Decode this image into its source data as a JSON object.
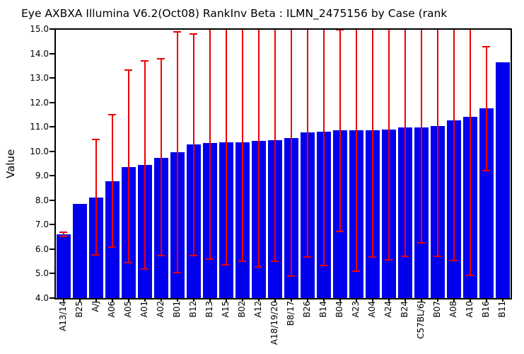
{
  "title": "Eye AXBXA Illumina V6.2(Oct08) RankInv Beta : ILMN_2475156 by Case (rank",
  "ylabel": "Value",
  "colors": {
    "bar": "#0000EE",
    "error": "#EE0000",
    "axis": "#000000",
    "background": "#FFFFFF"
  },
  "chart_data": {
    "type": "bar",
    "title": "Eye AXBXA Illumina V6.2(Oct08) RankInv Beta : ILMN_2475156 by Case (rank",
    "xlabel": "",
    "ylabel": "Value",
    "ylim": [
      4.0,
      15.0
    ],
    "ytick_step": 1.0,
    "grid": false,
    "legend": "none",
    "note": "blue bars with red error bars; several upper error whiskers are clipped at y=15.0 (no top cap drawn)",
    "categories": [
      "A13/14",
      "B25",
      "A/J",
      "A06",
      "A05",
      "A01",
      "A02",
      "B01",
      "B12",
      "B13",
      "A15",
      "B02",
      "A12",
      "A18/19/20",
      "B8/17",
      "B26",
      "B14",
      "B04",
      "A23",
      "A04",
      "A24",
      "B24",
      "C57BL/6J",
      "B07",
      "A08",
      "A10",
      "B16",
      "B11"
    ],
    "values": [
      6.61,
      7.85,
      8.12,
      8.79,
      9.35,
      9.44,
      9.72,
      9.96,
      10.27,
      10.33,
      10.38,
      10.38,
      10.42,
      10.46,
      10.53,
      10.77,
      10.79,
      10.85,
      10.85,
      10.86,
      10.9,
      10.97,
      10.97,
      11.04,
      11.27,
      11.4,
      11.77,
      13.65
    ],
    "rows": [
      {
        "label": "A13/14",
        "value": 6.61,
        "err_low": 6.53,
        "err_high": 6.68,
        "err_high_clipped": false
      },
      {
        "label": "B25",
        "value": 7.85,
        "err_low": null,
        "err_high": null,
        "err_high_clipped": false
      },
      {
        "label": "A/J",
        "value": 8.12,
        "err_low": 5.77,
        "err_high": 10.49,
        "err_high_clipped": false
      },
      {
        "label": "A06",
        "value": 8.79,
        "err_low": 6.08,
        "err_high": 11.51,
        "err_high_clipped": false
      },
      {
        "label": "A05",
        "value": 9.35,
        "err_low": 5.45,
        "err_high": 13.33,
        "err_high_clipped": false
      },
      {
        "label": "A01",
        "value": 9.44,
        "err_low": 5.2,
        "err_high": 13.7,
        "err_high_clipped": false
      },
      {
        "label": "A02",
        "value": 9.72,
        "err_low": 5.75,
        "err_high": 13.77,
        "err_high_clipped": false
      },
      {
        "label": "B01",
        "value": 9.96,
        "err_low": 5.04,
        "err_high": 14.88,
        "err_high_clipped": false
      },
      {
        "label": "B12",
        "value": 10.27,
        "err_low": 5.74,
        "err_high": 14.81,
        "err_high_clipped": false
      },
      {
        "label": "B13",
        "value": 10.33,
        "err_low": 5.59,
        "err_high": 15.0,
        "err_high_clipped": true
      },
      {
        "label": "A15",
        "value": 10.38,
        "err_low": 5.35,
        "err_high": 15.0,
        "err_high_clipped": true
      },
      {
        "label": "B02",
        "value": 10.38,
        "err_low": 5.5,
        "err_high": 15.0,
        "err_high_clipped": true
      },
      {
        "label": "A12",
        "value": 10.42,
        "err_low": 5.28,
        "err_high": 15.0,
        "err_high_clipped": true
      },
      {
        "label": "A18/19/20",
        "value": 10.46,
        "err_low": 5.5,
        "err_high": 15.0,
        "err_high_clipped": true
      },
      {
        "label": "B8/17",
        "value": 10.53,
        "err_low": 4.91,
        "err_high": 15.0,
        "err_high_clipped": true
      },
      {
        "label": "B26",
        "value": 10.77,
        "err_low": 5.67,
        "err_high": 15.0,
        "err_high_clipped": true
      },
      {
        "label": "B14",
        "value": 10.79,
        "err_low": 5.33,
        "err_high": 15.0,
        "err_high_clipped": true
      },
      {
        "label": "B04",
        "value": 10.85,
        "err_low": 6.72,
        "err_high": 14.96,
        "err_high_clipped": false
      },
      {
        "label": "A23",
        "value": 10.85,
        "err_low": 5.11,
        "err_high": 15.0,
        "err_high_clipped": true
      },
      {
        "label": "A04",
        "value": 10.86,
        "err_low": 5.69,
        "err_high": 15.0,
        "err_high_clipped": true
      },
      {
        "label": "A24",
        "value": 10.9,
        "err_low": 5.57,
        "err_high": 15.0,
        "err_high_clipped": true
      },
      {
        "label": "B24",
        "value": 10.97,
        "err_low": 5.72,
        "err_high": 15.0,
        "err_high_clipped": true
      },
      {
        "label": "C57BL/6J",
        "value": 10.97,
        "err_low": 6.25,
        "err_high": 15.0,
        "err_high_clipped": true
      },
      {
        "label": "B07",
        "value": 11.04,
        "err_low": 5.7,
        "err_high": 15.0,
        "err_high_clipped": true
      },
      {
        "label": "A08",
        "value": 11.27,
        "err_low": 5.54,
        "err_high": 15.0,
        "err_high_clipped": true
      },
      {
        "label": "A10",
        "value": 11.4,
        "err_low": 4.92,
        "err_high": 15.0,
        "err_high_clipped": true
      },
      {
        "label": "B16",
        "value": 11.77,
        "err_low": 9.21,
        "err_high": 14.27,
        "err_high_clipped": false
      },
      {
        "label": "B11",
        "value": 13.65,
        "err_low": null,
        "err_high": null,
        "err_high_clipped": false
      }
    ]
  }
}
